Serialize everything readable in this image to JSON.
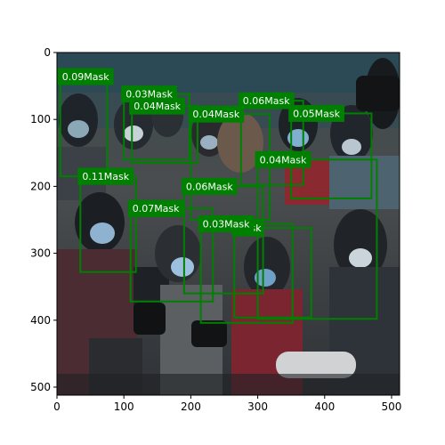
{
  "chart_data": {
    "type": "image-with-bounding-boxes",
    "x_ticks": [
      0,
      100,
      200,
      300,
      400,
      500
    ],
    "y_ticks": [
      0,
      100,
      200,
      300,
      400,
      500
    ],
    "xlim": [
      0,
      512
    ],
    "ylim": [
      512,
      0
    ],
    "grid": false,
    "box_color": "#008000",
    "label_bg_color": "#008000",
    "label_text_color": "#ffffff",
    "boxes": [
      {
        "label": "0.09Mask",
        "x1": 5,
        "y1": 36,
        "x2": 75,
        "y2": 185
      },
      {
        "label": "0.03Mask",
        "x1": 100,
        "y1": 62,
        "x2": 198,
        "y2": 160
      },
      {
        "label": "0.04Mask",
        "x1": 112,
        "y1": 80,
        "x2": 210,
        "y2": 165
      },
      {
        "label": "0.04Mask",
        "x1": 200,
        "y1": 92,
        "x2": 318,
        "y2": 250
      },
      {
        "label": "0.06Mask",
        "x1": 275,
        "y1": 72,
        "x2": 368,
        "y2": 198
      },
      {
        "label": "0.05Mask",
        "x1": 350,
        "y1": 91,
        "x2": 470,
        "y2": 218
      },
      {
        "label": "0.11Mask",
        "x1": 35,
        "y1": 185,
        "x2": 118,
        "y2": 328
      },
      {
        "label": "0.06Mask",
        "x1": 190,
        "y1": 200,
        "x2": 308,
        "y2": 360
      },
      {
        "label": "0.04Mask",
        "x1": 300,
        "y1": 160,
        "x2": 478,
        "y2": 398
      },
      {
        "label": "0.07Mask",
        "x1": 110,
        "y1": 233,
        "x2": 233,
        "y2": 372
      },
      {
        "label": "Mask",
        "x1": 265,
        "y1": 262,
        "x2": 380,
        "y2": 396
      },
      {
        "label": "0.03Mask",
        "x1": 215,
        "y1": 256,
        "x2": 352,
        "y2": 404
      }
    ]
  }
}
